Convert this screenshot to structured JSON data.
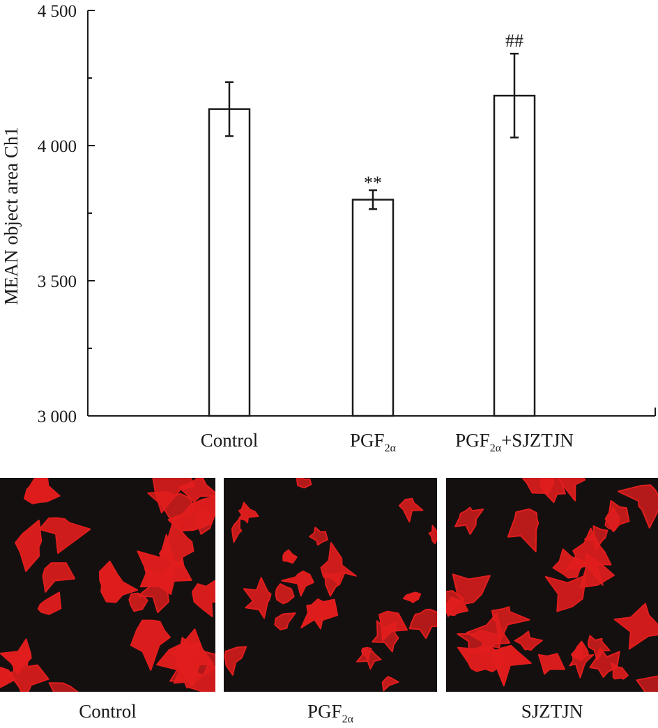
{
  "chart_data": {
    "type": "bar",
    "ylabel": "MEAN object area Ch1",
    "ylim": [
      3000,
      4500
    ],
    "yticks": [
      3000,
      3500,
      4000,
      4500
    ],
    "ytick_labels": [
      "3 000",
      "3 500",
      "4 000",
      "4 500"
    ],
    "categories": [
      {
        "main": "Control",
        "sub": "",
        "rest": ""
      },
      {
        "main": "PGF",
        "sub": "2α",
        "rest": ""
      },
      {
        "main": "PGF",
        "sub": "2α",
        "rest": "+SJZTJN"
      }
    ],
    "values": [
      4135,
      3800,
      4185
    ],
    "errors": [
      100,
      35,
      155
    ],
    "significance": [
      "",
      "**",
      "##"
    ],
    "grid": false,
    "bar_fill": "#ffffff",
    "bar_stroke": "#1a1a1a"
  },
  "panels": [
    {
      "caption_main": "Control",
      "caption_sub": ""
    },
    {
      "caption_main": "PGF",
      "caption_sub": "2α"
    },
    {
      "caption_main": "SJZTJN",
      "caption_sub": ""
    }
  ],
  "colors": {
    "cell_stain": "#e21d1d",
    "panel_background": "#141010"
  }
}
